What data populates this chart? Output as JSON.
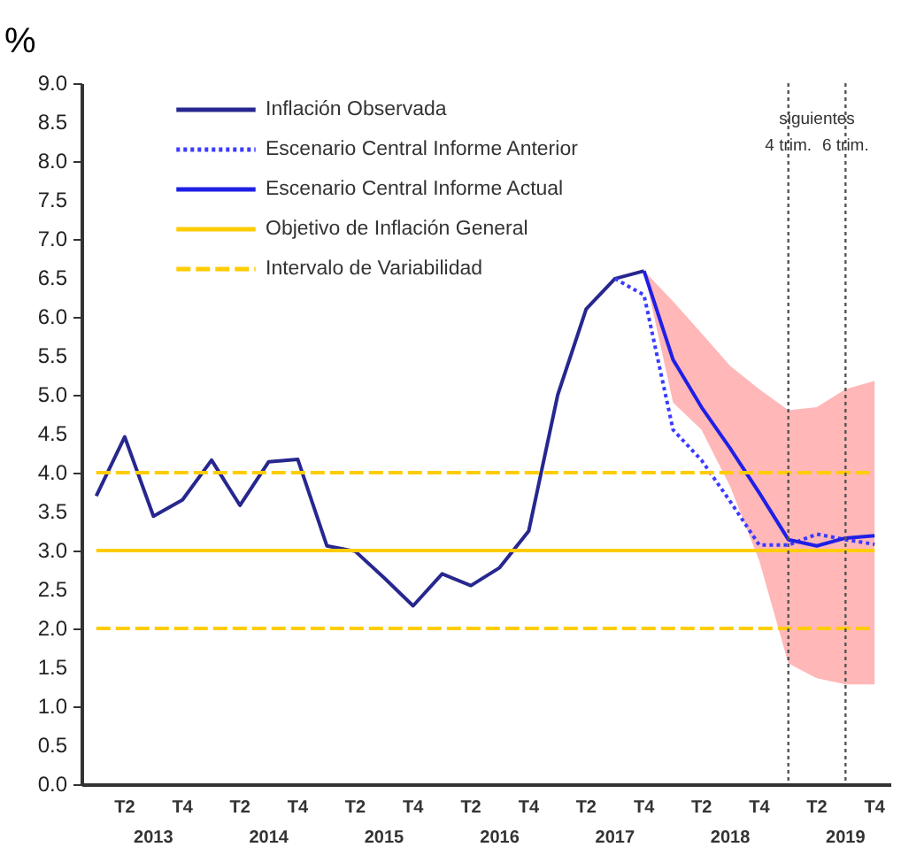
{
  "chart_data": {
    "type": "line",
    "ylabel": "%",
    "x": [
      "2013-01",
      "2013-04",
      "2013-07",
      "2013-10",
      "2014-01",
      "2014-04",
      "2014-07",
      "2014-10",
      "2015-01",
      "2015-04",
      "2015-07",
      "2015-10",
      "2016-01",
      "2016-04",
      "2016-07",
      "2016-10",
      "2017-01",
      "2017-04",
      "2017-07",
      "2017-10",
      "2018-01",
      "2018-04",
      "2018-07",
      "2018-10",
      "2019-01",
      "2019-04",
      "2019-07",
      "2019-10"
    ],
    "xlim": [
      "2012-11-15",
      "2019-11-20"
    ],
    "xticks": [
      {
        "value": "2013-04",
        "label": "T2"
      },
      {
        "value": "2013-10",
        "label": "T4"
      },
      {
        "value": "2014-04",
        "label": "T2"
      },
      {
        "value": "2014-10",
        "label": "T4"
      },
      {
        "value": "2015-04",
        "label": "T2"
      },
      {
        "value": "2015-10",
        "label": "T4"
      },
      {
        "value": "2016-04",
        "label": "T2"
      },
      {
        "value": "2016-10",
        "label": "T4"
      },
      {
        "value": "2017-04",
        "label": "T2"
      },
      {
        "value": "2017-10",
        "label": "T4"
      },
      {
        "value": "2018-04",
        "label": "T2"
      },
      {
        "value": "2018-10",
        "label": "T4"
      },
      {
        "value": "2019-04",
        "label": "T2"
      },
      {
        "value": "2019-10",
        "label": "T4"
      }
    ],
    "x2lim": [
      "2012-11-15",
      "2019-11-20"
    ],
    "x2ticks": [
      {
        "value": "2013-07",
        "label": "2013"
      },
      {
        "value": "2014-07",
        "label": "2014"
      },
      {
        "value": "2015-07",
        "label": "2015"
      },
      {
        "value": "2016-07",
        "label": "2016"
      },
      {
        "value": "2017-07",
        "label": "2017"
      },
      {
        "value": "2018-07",
        "label": "2018"
      },
      {
        "value": "2019-07",
        "label": "2019"
      }
    ],
    "ylim": [
      0,
      9
    ],
    "yticks": [
      {
        "value": 0,
        "label": "0.0"
      },
      {
        "value": 0.5,
        "label": "0.5"
      },
      {
        "value": 1,
        "label": "1.0"
      },
      {
        "value": 1.5,
        "label": "1.5"
      },
      {
        "value": 2,
        "label": "2.0"
      },
      {
        "value": 2.5,
        "label": "2.5"
      },
      {
        "value": 3,
        "label": "3.0"
      },
      {
        "value": 3.5,
        "label": "3.5"
      },
      {
        "value": 4,
        "label": "4.0"
      },
      {
        "value": 4.5,
        "label": "4.5"
      },
      {
        "value": 5,
        "label": "5.0"
      },
      {
        "value": 5.5,
        "label": "5.5"
      },
      {
        "value": 6,
        "label": "6.0"
      },
      {
        "value": 6.5,
        "label": "6.5"
      },
      {
        "value": 7,
        "label": "7.0"
      },
      {
        "value": 7.5,
        "label": "7.5"
      },
      {
        "value": 8,
        "label": "8.0"
      },
      {
        "value": 8.5,
        "label": "8.5"
      },
      {
        "value": 9,
        "label": "9.0"
      }
    ],
    "grid": false,
    "legend": "top left",
    "marker": "none",
    "series": [
      {
        "name": "Inflación Observada",
        "color": "#27278f",
        "line_style": "solid",
        "values": [
          3.7,
          4.46,
          3.44,
          3.65,
          4.16,
          3.58,
          4.14,
          4.17,
          3.06,
          2.99,
          2.65,
          2.29,
          2.7,
          2.55,
          2.78,
          3.25,
          5.0,
          6.1,
          6.49,
          6.59,
          null,
          null,
          null,
          null,
          null,
          null,
          null,
          null
        ]
      },
      {
        "name": "Escenario Central Informe Anterior",
        "color": "#3b3bff",
        "line_style": "dotted",
        "values": [
          null,
          null,
          null,
          null,
          null,
          null,
          null,
          null,
          null,
          null,
          null,
          null,
          null,
          null,
          null,
          null,
          null,
          null,
          6.49,
          6.28,
          4.55,
          4.16,
          3.63,
          3.07,
          3.07,
          3.21,
          3.14,
          3.08
        ]
      },
      {
        "name": "Escenario Central Informe Actual",
        "color": "#1f1fe6",
        "line_style": "solid",
        "values": [
          null,
          null,
          null,
          null,
          null,
          null,
          null,
          null,
          null,
          null,
          null,
          null,
          null,
          null,
          null,
          null,
          null,
          null,
          null,
          6.59,
          5.45,
          4.84,
          4.31,
          3.74,
          3.14,
          3.06,
          3.16,
          3.19
        ],
        "lower": [
          null,
          null,
          null,
          null,
          null,
          null,
          null,
          null,
          null,
          null,
          null,
          null,
          null,
          null,
          null,
          null,
          null,
          null,
          null,
          6.59,
          4.9,
          4.55,
          3.82,
          2.87,
          1.55,
          1.36,
          1.28,
          1.28
        ],
        "upper": [
          null,
          null,
          null,
          null,
          null,
          null,
          null,
          null,
          null,
          null,
          null,
          null,
          null,
          null,
          null,
          null,
          null,
          null,
          null,
          6.59,
          6.2,
          5.79,
          5.37,
          5.07,
          4.8,
          4.84,
          5.07,
          5.18
        ]
      },
      {
        "name": "Objetivo de Inflación General",
        "color": "#ffcc00",
        "line_style": "solid",
        "values": [
          3,
          3,
          3,
          3,
          3,
          3,
          3,
          3,
          3,
          3,
          3,
          3,
          3,
          3,
          3,
          3,
          3,
          3,
          3,
          3,
          3,
          3,
          3,
          3,
          3,
          3,
          3,
          3
        ]
      },
      {
        "name": "Intervalo de Variabilidad",
        "color": "#ffcc00",
        "line_style": "dashed",
        "values": [
          4,
          4,
          4,
          4,
          4,
          4,
          4,
          4,
          4,
          4,
          4,
          4,
          4,
          4,
          4,
          4,
          4,
          4,
          4,
          4,
          4,
          4,
          4,
          4,
          4,
          4,
          4,
          4
        ]
      },
      {
        "color": "#ffcc00",
        "line_style": "dashed",
        "values": [
          2,
          2,
          2,
          2,
          2,
          2,
          2,
          2,
          2,
          2,
          2,
          2,
          2,
          2,
          2,
          2,
          2,
          2,
          2,
          2,
          2,
          2,
          2,
          2,
          2,
          2,
          2,
          2
        ]
      }
    ],
    "ref_lines": [
      {
        "axis": "x",
        "value": "2019-01",
        "label": "4 trim.",
        "color": "#555555",
        "line_style": "dotted"
      },
      {
        "axis": "x",
        "value": "2019-07",
        "label": "6 trim.",
        "color": "#555555",
        "line_style": "dotted"
      }
    ],
    "annotations": [
      "siguientes"
    ]
  }
}
